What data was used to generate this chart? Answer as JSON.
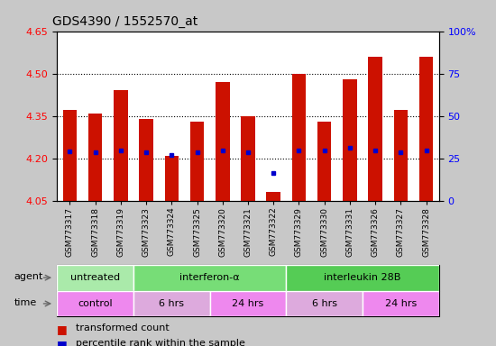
{
  "title": "GDS4390 / 1552570_at",
  "samples": [
    "GSM773317",
    "GSM773318",
    "GSM773319",
    "GSM773323",
    "GSM773324",
    "GSM773325",
    "GSM773320",
    "GSM773321",
    "GSM773322",
    "GSM773329",
    "GSM773330",
    "GSM773331",
    "GSM773326",
    "GSM773327",
    "GSM773328"
  ],
  "transformed_count": [
    4.37,
    4.36,
    4.44,
    4.34,
    4.21,
    4.33,
    4.47,
    4.35,
    4.08,
    4.5,
    4.33,
    4.48,
    4.56,
    4.37,
    4.56
  ],
  "percentile_rank_val": [
    4.225,
    4.222,
    4.228,
    4.222,
    4.212,
    4.222,
    4.228,
    4.222,
    4.148,
    4.228,
    4.228,
    4.238,
    4.228,
    4.222,
    4.228
  ],
  "ylim_left": [
    4.05,
    4.65
  ],
  "ylim_right": [
    0,
    100
  ],
  "yticks_left": [
    4.05,
    4.2,
    4.35,
    4.5,
    4.65
  ],
  "yticks_right": [
    0,
    25,
    50,
    75,
    100
  ],
  "bar_color": "#cc1100",
  "dot_color": "#0000cc",
  "bar_width": 0.55,
  "agent_groups": [
    {
      "label": "untreated",
      "start": 0,
      "end": 3,
      "color": "#aaeaaa"
    },
    {
      "label": "interferon-α",
      "start": 3,
      "end": 9,
      "color": "#77dd77"
    },
    {
      "label": "interleukin 28B",
      "start": 9,
      "end": 15,
      "color": "#55cc55"
    }
  ],
  "time_groups": [
    {
      "label": "control",
      "start": 0,
      "end": 3,
      "color": "#ee88ee"
    },
    {
      "label": "6 hrs",
      "start": 3,
      "end": 6,
      "color": "#ddaadd"
    },
    {
      "label": "24 hrs",
      "start": 6,
      "end": 9,
      "color": "#ee88ee"
    },
    {
      "label": "6 hrs",
      "start": 9,
      "end": 12,
      "color": "#ddaadd"
    },
    {
      "label": "24 hrs",
      "start": 12,
      "end": 15,
      "color": "#ee88ee"
    }
  ],
  "legend_items": [
    {
      "color": "#cc1100",
      "label": "transformed count"
    },
    {
      "color": "#0000cc",
      "label": "percentile rank within the sample"
    }
  ],
  "grid_yticks": [
    4.2,
    4.35,
    4.5
  ],
  "fig_bg_color": "#c8c8c8",
  "plot_bg_color": "#ffffff"
}
